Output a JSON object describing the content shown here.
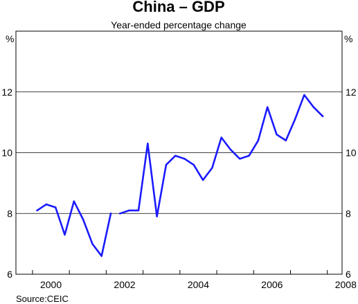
{
  "chart_data": {
    "type": "line",
    "title": "China – GDP",
    "subtitle": "Year-ended percentage change",
    "y_unit_left": "%",
    "y_unit_right": "%",
    "source": "Source:CEIC",
    "ylim": [
      6,
      14
    ],
    "xlim": [
      1999.55,
      2008.4
    ],
    "y_ticks": [
      6,
      8,
      10,
      12
    ],
    "x_tick_labels": [
      "2000",
      "2002",
      "2004",
      "2006",
      "2008"
    ],
    "x_ticks": [
      2000,
      2002,
      2004,
      2006,
      2008
    ],
    "gridlines": true,
    "line_color": "#1a1aff",
    "series": [
      {
        "segments": [
          [
            {
              "x": "2000 Q1",
              "y": 8.1
            },
            {
              "x": "2000 Q2",
              "y": 8.3
            },
            {
              "x": "2000 Q3",
              "y": 8.2
            },
            {
              "x": "2000 Q4",
              "y": 7.3
            },
            {
              "x": "2001 Q1",
              "y": 8.4
            },
            {
              "x": "2001 Q2",
              "y": 7.8
            },
            {
              "x": "2001 Q3",
              "y": 7.0
            },
            {
              "x": "2001 Q4",
              "y": 6.6
            },
            {
              "x": "2002 Q1",
              "y": 8.0
            }
          ],
          [
            {
              "x": "2002 Q2",
              "y": 8.0
            },
            {
              "x": "2002 Q3",
              "y": 8.1
            },
            {
              "x": "2002 Q4",
              "y": 8.1
            },
            {
              "x": "2003 Q1",
              "y": 10.3
            },
            {
              "x": "2003 Q2",
              "y": 7.9
            },
            {
              "x": "2003 Q3",
              "y": 9.6
            },
            {
              "x": "2003 Q4",
              "y": 9.9
            },
            {
              "x": "2004 Q1",
              "y": 9.8
            },
            {
              "x": "2004 Q2",
              "y": 9.6
            },
            {
              "x": "2004 Q3",
              "y": 9.1
            },
            {
              "x": "2004 Q4",
              "y": 9.5
            },
            {
              "x": "2005 Q1",
              "y": 10.5
            },
            {
              "x": "2005 Q2",
              "y": 10.1
            },
            {
              "x": "2005 Q3",
              "y": 9.8
            },
            {
              "x": "2005 Q4",
              "y": 9.9
            },
            {
              "x": "2006 Q1",
              "y": 10.4
            },
            {
              "x": "2006 Q2",
              "y": 11.5
            },
            {
              "x": "2006 Q3",
              "y": 10.6
            },
            {
              "x": "2006 Q4",
              "y": 10.4
            },
            {
              "x": "2007 Q1",
              "y": 11.1
            },
            {
              "x": "2007 Q2",
              "y": 11.9
            },
            {
              "x": "2007 Q3",
              "y": 11.5
            },
            {
              "x": "2007 Q4",
              "y": 11.2
            }
          ]
        ]
      }
    ]
  }
}
